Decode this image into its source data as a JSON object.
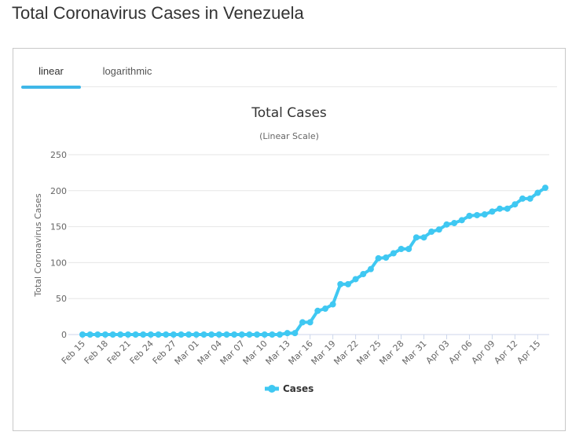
{
  "page": {
    "title": "Total Coronavirus Cases in Venezuela"
  },
  "tabs": [
    {
      "label": "linear",
      "active": true
    },
    {
      "label": "logarithmic",
      "active": false
    }
  ],
  "chart_data": {
    "type": "line",
    "title": "Total Cases",
    "subtitle": "(Linear Scale)",
    "ylabel": "Total Coronavirus Cases",
    "xlabel": "",
    "ylim": [
      0,
      250
    ],
    "yticks": [
      0,
      50,
      100,
      150,
      200,
      250
    ],
    "grid": true,
    "legend_position": "bottom-center",
    "color": "#3fc8f2",
    "categories": [
      "Feb 15",
      "Feb 16",
      "Feb 17",
      "Feb 18",
      "Feb 19",
      "Feb 20",
      "Feb 21",
      "Feb 22",
      "Feb 23",
      "Feb 24",
      "Feb 25",
      "Feb 26",
      "Feb 27",
      "Feb 28",
      "Feb 29",
      "Mar 01",
      "Mar 02",
      "Mar 03",
      "Mar 04",
      "Mar 05",
      "Mar 06",
      "Mar 07",
      "Mar 08",
      "Mar 09",
      "Mar 10",
      "Mar 11",
      "Mar 12",
      "Mar 13",
      "Mar 14",
      "Mar 15",
      "Mar 16",
      "Mar 17",
      "Mar 18",
      "Mar 19",
      "Mar 20",
      "Mar 21",
      "Mar 22",
      "Mar 23",
      "Mar 24",
      "Mar 25",
      "Mar 26",
      "Mar 27",
      "Mar 28",
      "Mar 29",
      "Mar 30",
      "Mar 31",
      "Apr 01",
      "Apr 02",
      "Apr 03",
      "Apr 04",
      "Apr 05",
      "Apr 06",
      "Apr 07",
      "Apr 08",
      "Apr 09",
      "Apr 10",
      "Apr 11",
      "Apr 12",
      "Apr 13",
      "Apr 14",
      "Apr 15",
      "Apr 16"
    ],
    "tick_labels": [
      "Feb 15",
      "Feb 18",
      "Feb 21",
      "Feb 24",
      "Feb 27",
      "Mar 01",
      "Mar 04",
      "Mar 07",
      "Mar 10",
      "Mar 13",
      "Mar 16",
      "Mar 19",
      "Mar 22",
      "Mar 25",
      "Mar 28",
      "Mar 31",
      "Apr 03",
      "Apr 06",
      "Apr 09",
      "Apr 12",
      "Apr 15"
    ],
    "series": [
      {
        "name": "Cases",
        "values": [
          0,
          0,
          0,
          0,
          0,
          0,
          0,
          0,
          0,
          0,
          0,
          0,
          0,
          0,
          0,
          0,
          0,
          0,
          0,
          0,
          0,
          0,
          0,
          0,
          0,
          0,
          0,
          2,
          2,
          17,
          17,
          33,
          36,
          42,
          70,
          70,
          77,
          84,
          91,
          106,
          107,
          113,
          119,
          119,
          135,
          135,
          143,
          146,
          153,
          155,
          159,
          165,
          166,
          167,
          171,
          175,
          175,
          181,
          189,
          189,
          197,
          204
        ]
      }
    ]
  }
}
